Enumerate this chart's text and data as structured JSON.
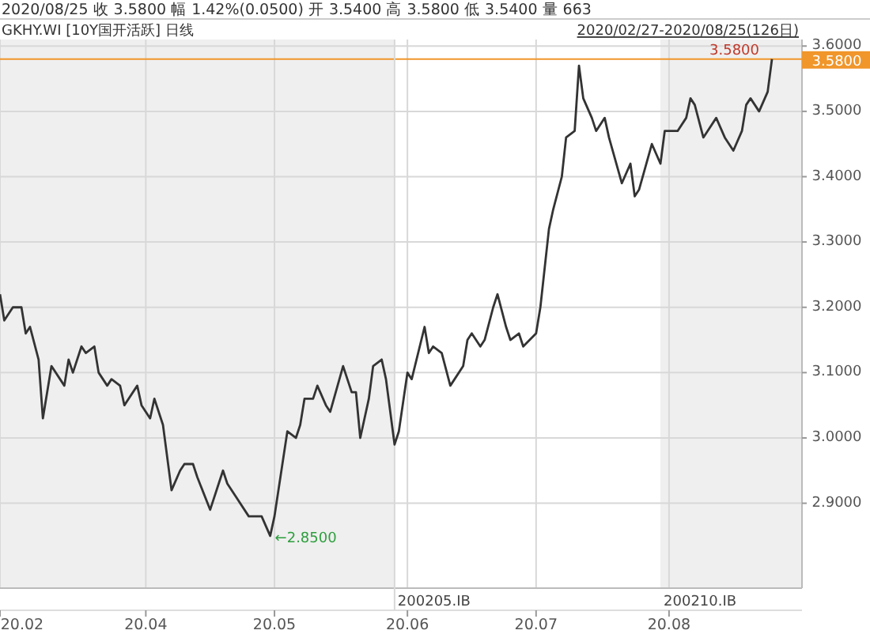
{
  "chart_data": {
    "type": "line",
    "title": "2020/08/25  收 3.5800  幅 1.42%(0.0500)  开 3.5400  高 3.5800  低 3.5400  量 663",
    "subtitle": "GKHY.WI [10Y国开活跃] 日线",
    "annotations": [
      "2020/02/27-2020/08/25(126日)",
      {
        "text": "3.5800",
        "x": "2020-08-25",
        "y": 3.58
      },
      {
        "text": "←2.8500",
        "x": "2020-04-30",
        "y": 2.85
      }
    ],
    "xlim": [
      "2020-02-27",
      "2020-09-01"
    ],
    "xticks": [
      {
        "value": "2020-02-27",
        "label": "20.02"
      },
      {
        "value": "2020-04-01",
        "label": "20.04"
      },
      {
        "value": "2020-05-01",
        "label": "20.05"
      },
      {
        "value": "2020-06-01",
        "label": "20.06"
      },
      {
        "value": "2020-07-01",
        "label": "20.07"
      },
      {
        "value": "2020-08-01",
        "label": "20.08"
      }
    ],
    "ylim": [
      2.77,
      3.61
    ],
    "yticks": [
      {
        "value": 2.9,
        "label": "2.9000"
      },
      {
        "value": 3.0,
        "label": "3.0000"
      },
      {
        "value": 3.1,
        "label": "3.1000"
      },
      {
        "value": 3.2,
        "label": "3.2000"
      },
      {
        "value": 3.3,
        "label": "3.3000"
      },
      {
        "value": 3.4,
        "label": "3.4000"
      },
      {
        "value": 3.5,
        "label": "3.5000"
      },
      {
        "value": 3.6,
        "label": "3.6000"
      }
    ],
    "grid": true,
    "ref_lines": [
      {
        "axis": "y",
        "value": 3.58,
        "label": "3.5800",
        "color": "#f0962a"
      },
      {
        "axis": "x",
        "value": "2020-05-29",
        "label": "200205.IB",
        "color": "#d8d8d8"
      }
    ],
    "bands": [
      {
        "axis": "x",
        "from": "2020-02-27",
        "to": "2020-05-29",
        "color": "#efefef"
      },
      {
        "axis": "x",
        "from": "2020-07-30",
        "to": "2020-09-01",
        "color": "#efefef",
        "label": "200210.IB"
      }
    ],
    "x": [
      "2020-02-27",
      "2020-02-28",
      "2020-03-01",
      "2020-03-03",
      "2020-03-04",
      "2020-03-05",
      "2020-03-07",
      "2020-03-08",
      "2020-03-10",
      "2020-03-12",
      "2020-03-13",
      "2020-03-14",
      "2020-03-15",
      "2020-03-17",
      "2020-03-18",
      "2020-03-20",
      "2020-03-21",
      "2020-03-23",
      "2020-03-24",
      "2020-03-26",
      "2020-03-27",
      "2020-03-30",
      "2020-03-31",
      "2020-04-02",
      "2020-04-03",
      "2020-04-05",
      "2020-04-07",
      "2020-04-09",
      "2020-04-10",
      "2020-04-12",
      "2020-04-13",
      "2020-04-16",
      "2020-04-18",
      "2020-04-19",
      "2020-04-20",
      "2020-04-22",
      "2020-04-25",
      "2020-04-28",
      "2020-04-30",
      "2020-05-01",
      "2020-05-04",
      "2020-05-06",
      "2020-05-07",
      "2020-05-08",
      "2020-05-10",
      "2020-05-11",
      "2020-05-13",
      "2020-05-14",
      "2020-05-17",
      "2020-05-19",
      "2020-05-20",
      "2020-05-21",
      "2020-05-23",
      "2020-05-24",
      "2020-05-26",
      "2020-05-27",
      "2020-05-29",
      "2020-05-30",
      "2020-06-01",
      "2020-06-02",
      "2020-06-05",
      "2020-06-06",
      "2020-06-07",
      "2020-06-09",
      "2020-06-11",
      "2020-06-12",
      "2020-06-14",
      "2020-06-15",
      "2020-06-16",
      "2020-06-18",
      "2020-06-19",
      "2020-06-21",
      "2020-06-22",
      "2020-06-24",
      "2020-06-25",
      "2020-06-27",
      "2020-06-28",
      "2020-07-01",
      "2020-07-02",
      "2020-07-04",
      "2020-07-05",
      "2020-07-07",
      "2020-07-08",
      "2020-07-10",
      "2020-07-11",
      "2020-07-12",
      "2020-07-14",
      "2020-07-15",
      "2020-07-17",
      "2020-07-18",
      "2020-07-21",
      "2020-07-23",
      "2020-07-24",
      "2020-07-25",
      "2020-07-28",
      "2020-07-30",
      "2020-07-31",
      "2020-08-03",
      "2020-08-05",
      "2020-08-06",
      "2020-08-07",
      "2020-08-09",
      "2020-08-10",
      "2020-08-12",
      "2020-08-14",
      "2020-08-16",
      "2020-08-18",
      "2020-08-19",
      "2020-08-20",
      "2020-08-22",
      "2020-08-24",
      "2020-08-25"
    ],
    "series": [
      {
        "color": "#333333",
        "values": [
          3.22,
          3.18,
          3.2,
          3.2,
          3.16,
          3.17,
          3.12,
          3.03,
          3.11,
          3.09,
          3.08,
          3.12,
          3.1,
          3.14,
          3.13,
          3.14,
          3.1,
          3.08,
          3.09,
          3.08,
          3.05,
          3.08,
          3.05,
          3.03,
          3.06,
          3.02,
          2.92,
          2.95,
          2.96,
          2.96,
          2.94,
          2.89,
          2.93,
          2.95,
          2.93,
          2.91,
          2.88,
          2.88,
          2.85,
          2.88,
          3.01,
          3.0,
          3.02,
          3.06,
          3.06,
          3.08,
          3.05,
          3.04,
          3.11,
          3.07,
          3.07,
          3.0,
          3.06,
          3.11,
          3.12,
          3.09,
          2.99,
          3.01,
          3.1,
          3.09,
          3.17,
          3.13,
          3.14,
          3.13,
          3.08,
          3.09,
          3.11,
          3.15,
          3.16,
          3.14,
          3.15,
          3.2,
          3.22,
          3.17,
          3.15,
          3.16,
          3.14,
          3.16,
          3.2,
          3.32,
          3.35,
          3.4,
          3.46,
          3.47,
          3.57,
          3.52,
          3.49,
          3.47,
          3.49,
          3.46,
          3.39,
          3.42,
          3.37,
          3.38,
          3.45,
          3.42,
          3.47,
          3.47,
          3.49,
          3.52,
          3.51,
          3.46,
          3.47,
          3.49,
          3.46,
          3.44,
          3.47,
          3.51,
          3.52,
          3.5,
          3.53,
          3.58
        ]
      }
    ]
  }
}
